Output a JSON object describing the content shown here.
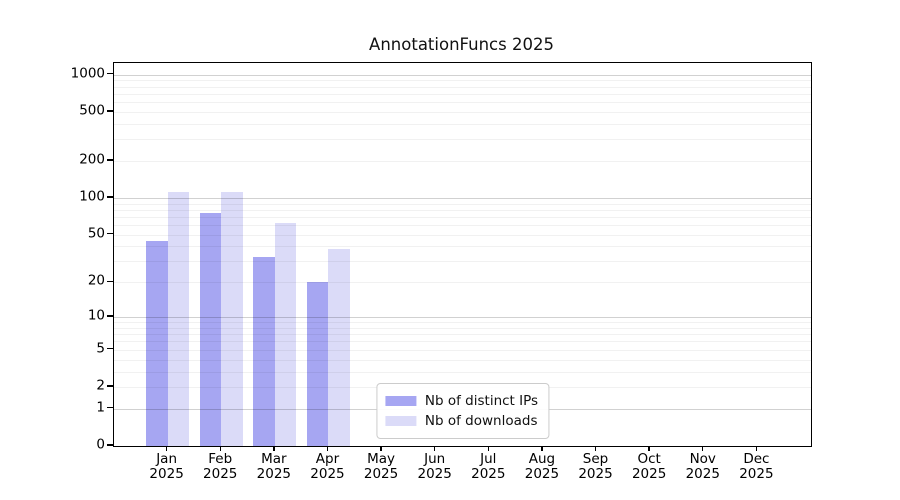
{
  "title": "AnnotationFuncs 2025",
  "chart_data": {
    "type": "bar",
    "title": "AnnotationFuncs 2025",
    "categories": [
      "Jan",
      "Feb",
      "Mar",
      "Apr",
      "May",
      "Jun",
      "Jul",
      "Aug",
      "Sep",
      "Oct",
      "Nov",
      "Dec"
    ],
    "year_label": "2025",
    "series": [
      {
        "name": "Nb of distinct IPs",
        "color": "#a6a6f2",
        "values": [
          44,
          76,
          33,
          20,
          0,
          0,
          0,
          0,
          0,
          0,
          0,
          0
        ]
      },
      {
        "name": "Nb of downloads",
        "color": "#dbdbf8",
        "values": [
          111,
          113,
          62,
          38,
          0,
          0,
          0,
          0,
          0,
          0,
          0,
          0
        ]
      }
    ],
    "xlabel": "",
    "ylabel": "",
    "y_ticks": [
      0,
      1,
      2,
      5,
      10,
      20,
      50,
      100,
      200,
      500,
      1000
    ],
    "y_scale": "log1p",
    "ylim": [
      0,
      1245
    ],
    "grid": true,
    "legend_position": "lower center"
  }
}
